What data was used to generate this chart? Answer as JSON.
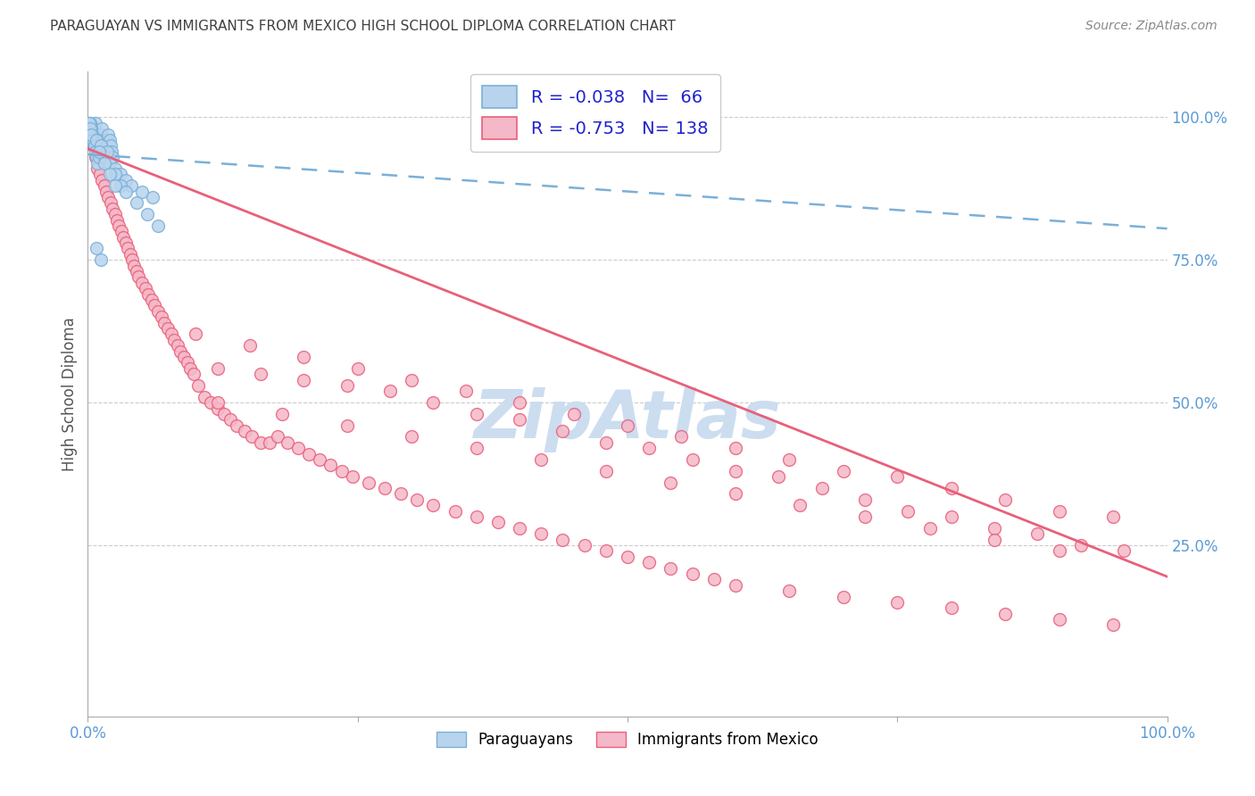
{
  "title": "PARAGUAYAN VS IMMIGRANTS FROM MEXICO HIGH SCHOOL DIPLOMA CORRELATION CHART",
  "source": "Source: ZipAtlas.com",
  "ylabel": "High School Diploma",
  "legend_blue_R": "-0.038",
  "legend_blue_N": "66",
  "legend_pink_R": "-0.753",
  "legend_pink_N": "138",
  "legend_labels": [
    "Paraguayans",
    "Immigrants from Mexico"
  ],
  "blue_color": "#b8d4ed",
  "blue_edge_color": "#7ab0d8",
  "pink_color": "#f5b8c8",
  "pink_edge_color": "#e8607a",
  "blue_line_color": "#7ab0d8",
  "pink_line_color": "#e8607a",
  "legend_R_color": "#2222cc",
  "legend_N_color": "#2222cc",
  "title_color": "#404040",
  "source_color": "#888888",
  "right_axis_color": "#5b9bd5",
  "watermark_color": "#ccddf0",
  "grid_color": "#cccccc",
  "background_color": "#ffffff",
  "blue_scatter_x": [
    0.004,
    0.005,
    0.006,
    0.007,
    0.008,
    0.009,
    0.01,
    0.011,
    0.012,
    0.013,
    0.014,
    0.015,
    0.016,
    0.017,
    0.018,
    0.019,
    0.02,
    0.021,
    0.022,
    0.023,
    0.003,
    0.004,
    0.005,
    0.006,
    0.007,
    0.008,
    0.009,
    0.01,
    0.011,
    0.012,
    0.002,
    0.003,
    0.004,
    0.005,
    0.006,
    0.007,
    0.008,
    0.009,
    0.01,
    0.011,
    0.001,
    0.002,
    0.003,
    0.015,
    0.02,
    0.025,
    0.03,
    0.035,
    0.04,
    0.05,
    0.06,
    0.008,
    0.012,
    0.018,
    0.025,
    0.03,
    0.035,
    0.045,
    0.055,
    0.065,
    0.01,
    0.015,
    0.02,
    0.025,
    0.008,
    0.012
  ],
  "blue_scatter_y": [
    0.96,
    0.97,
    0.98,
    0.99,
    0.96,
    0.97,
    0.95,
    0.96,
    0.97,
    0.98,
    0.95,
    0.96,
    0.94,
    0.95,
    0.96,
    0.97,
    0.96,
    0.95,
    0.94,
    0.93,
    0.98,
    0.97,
    0.96,
    0.95,
    0.96,
    0.95,
    0.94,
    0.93,
    0.94,
    0.95,
    0.99,
    0.98,
    0.97,
    0.96,
    0.95,
    0.94,
    0.93,
    0.92,
    0.93,
    0.94,
    0.99,
    0.98,
    0.97,
    0.93,
    0.92,
    0.91,
    0.9,
    0.89,
    0.88,
    0.87,
    0.86,
    0.96,
    0.95,
    0.94,
    0.9,
    0.88,
    0.87,
    0.85,
    0.83,
    0.81,
    0.94,
    0.92,
    0.9,
    0.88,
    0.77,
    0.75
  ],
  "pink_scatter_x": [
    0.005,
    0.007,
    0.009,
    0.011,
    0.013,
    0.015,
    0.017,
    0.019,
    0.021,
    0.023,
    0.025,
    0.027,
    0.029,
    0.031,
    0.033,
    0.035,
    0.037,
    0.039,
    0.041,
    0.043,
    0.045,
    0.047,
    0.05,
    0.053,
    0.056,
    0.059,
    0.062,
    0.065,
    0.068,
    0.071,
    0.074,
    0.077,
    0.08,
    0.083,
    0.086,
    0.089,
    0.092,
    0.095,
    0.098,
    0.102,
    0.108,
    0.114,
    0.12,
    0.126,
    0.132,
    0.138,
    0.145,
    0.152,
    0.16,
    0.168,
    0.176,
    0.185,
    0.195,
    0.205,
    0.215,
    0.225,
    0.235,
    0.245,
    0.26,
    0.275,
    0.29,
    0.305,
    0.32,
    0.34,
    0.36,
    0.38,
    0.4,
    0.42,
    0.44,
    0.46,
    0.48,
    0.5,
    0.52,
    0.54,
    0.56,
    0.58,
    0.6,
    0.65,
    0.7,
    0.75,
    0.8,
    0.85,
    0.9,
    0.95,
    0.12,
    0.16,
    0.2,
    0.24,
    0.28,
    0.32,
    0.36,
    0.4,
    0.44,
    0.48,
    0.52,
    0.56,
    0.6,
    0.64,
    0.68,
    0.72,
    0.76,
    0.8,
    0.84,
    0.88,
    0.92,
    0.96,
    0.1,
    0.15,
    0.2,
    0.25,
    0.3,
    0.35,
    0.4,
    0.45,
    0.5,
    0.55,
    0.6,
    0.65,
    0.7,
    0.75,
    0.8,
    0.85,
    0.9,
    0.95,
    0.12,
    0.18,
    0.24,
    0.3,
    0.36,
    0.42,
    0.48,
    0.54,
    0.6,
    0.66,
    0.72,
    0.78,
    0.84,
    0.9
  ],
  "pink_scatter_y": [
    0.95,
    0.93,
    0.91,
    0.9,
    0.89,
    0.88,
    0.87,
    0.86,
    0.85,
    0.84,
    0.83,
    0.82,
    0.81,
    0.8,
    0.79,
    0.78,
    0.77,
    0.76,
    0.75,
    0.74,
    0.73,
    0.72,
    0.71,
    0.7,
    0.69,
    0.68,
    0.67,
    0.66,
    0.65,
    0.64,
    0.63,
    0.62,
    0.61,
    0.6,
    0.59,
    0.58,
    0.57,
    0.56,
    0.55,
    0.53,
    0.51,
    0.5,
    0.49,
    0.48,
    0.47,
    0.46,
    0.45,
    0.44,
    0.43,
    0.43,
    0.44,
    0.43,
    0.42,
    0.41,
    0.4,
    0.39,
    0.38,
    0.37,
    0.36,
    0.35,
    0.34,
    0.33,
    0.32,
    0.31,
    0.3,
    0.29,
    0.28,
    0.27,
    0.26,
    0.25,
    0.24,
    0.23,
    0.22,
    0.21,
    0.2,
    0.19,
    0.18,
    0.17,
    0.16,
    0.15,
    0.14,
    0.13,
    0.12,
    0.11,
    0.56,
    0.55,
    0.54,
    0.53,
    0.52,
    0.5,
    0.48,
    0.47,
    0.45,
    0.43,
    0.42,
    0.4,
    0.38,
    0.37,
    0.35,
    0.33,
    0.31,
    0.3,
    0.28,
    0.27,
    0.25,
    0.24,
    0.62,
    0.6,
    0.58,
    0.56,
    0.54,
    0.52,
    0.5,
    0.48,
    0.46,
    0.44,
    0.42,
    0.4,
    0.38,
    0.37,
    0.35,
    0.33,
    0.31,
    0.3,
    0.5,
    0.48,
    0.46,
    0.44,
    0.42,
    0.4,
    0.38,
    0.36,
    0.34,
    0.32,
    0.3,
    0.28,
    0.26,
    0.24
  ],
  "blue_line_x0": 0.0,
  "blue_line_x1": 1.0,
  "blue_line_y0": 0.935,
  "blue_line_y1": 0.805,
  "pink_line_x0": 0.0,
  "pink_line_x1": 1.0,
  "pink_line_y0": 0.945,
  "pink_line_y1": 0.195,
  "xlim": [
    0.0,
    1.0
  ],
  "ylim": [
    -0.05,
    1.08
  ],
  "right_ytick_vals": [
    1.0,
    0.75,
    0.5,
    0.25
  ],
  "right_ytick_labels": [
    "100.0%",
    "75.0%",
    "50.0%",
    "25.0%"
  ]
}
